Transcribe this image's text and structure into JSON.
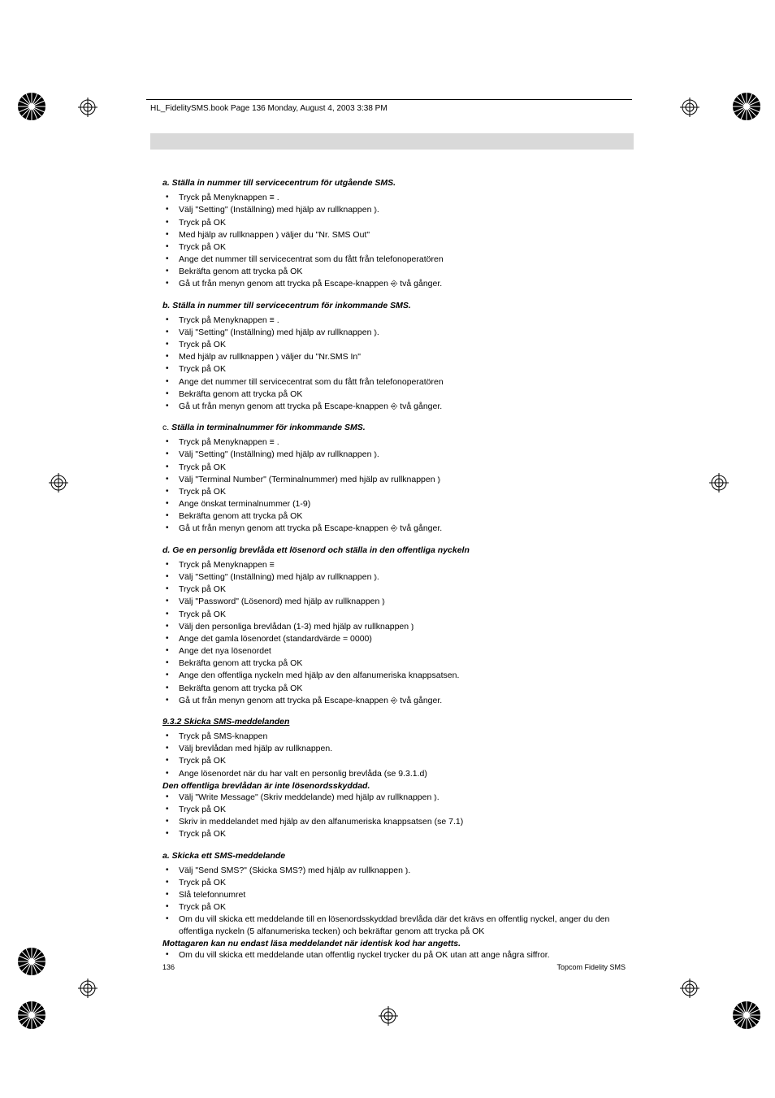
{
  "header": {
    "running_head": "HL_FidelitySMS.book  Page 136  Monday, August 4, 2003  3:38 PM"
  },
  "sections": {
    "a": {
      "title": "a. Ställa in nummer till servicecentrum för utgående SMS.",
      "steps": [
        "Tryck på Menyknappen  ≡ .",
        "Välj \"Setting\" (Inställning) med hjälp av rullknappen  ⦆.",
        "Tryck på OK",
        "Med hjälp av rullknappen  ⦆ väljer du \"Nr.    SMS Out\"",
        "Tryck på OK",
        "Ange det nummer till servicecentrat som du fått från telefonoperatören",
        "Bekräfta genom att trycka på OK",
        "Gå ut från menyn genom att trycka på Escape-knappen  ⎆  två gånger."
      ]
    },
    "b": {
      "title": "b. Ställa in nummer till servicecentrum för inkommande SMS.",
      "steps": [
        "Tryck på Menyknappen  ≡ .",
        "Välj \"Setting\" (Inställning) med hjälp av rullknappen  ⦆.",
        "Tryck på OK",
        "Med hjälp av rullknappen  ⦆ väljer du \"Nr.SMS In\"",
        "Tryck på OK",
        "Ange det nummer till servicecentrat som du fått från telefonoperatören",
        "Bekräfta genom att trycka på OK",
        "Gå ut från menyn genom att trycka på Escape-knappen  ⎆  två gånger."
      ]
    },
    "c": {
      "prefix": "c. ",
      "title": "Ställa in terminalnummer för inkommande SMS.",
      "steps": [
        "Tryck på Menyknappen  ≡ .",
        "Välj \"Setting\" (Inställning) med hjälp av rullknappen  ⦆.",
        "Tryck på OK",
        "Välj \"Terminal Number\" (Terminalnummer) med hjälp av rullknappen  ⦆",
        "Tryck på OK",
        "Ange önskat terminalnummer (1-9)",
        "Bekräfta genom att trycka på OK",
        "Gå ut från menyn genom att trycka på Escape-knappen  ⎆  två gånger."
      ]
    },
    "d": {
      "title": "d. Ge en personlig brevlåda ett lösenord och ställa in den offentliga nyckeln",
      "steps": [
        "Tryck på Menyknappen  ≡",
        "Välj \"Setting\" (Inställning) med hjälp av rullknappen  ⦆.",
        "Tryck på OK",
        "Välj \"Password\" (Lösenord) med hjälp av rullknappen  ⦆",
        "Tryck på OK",
        "Välj den personliga brevlådan (1-3) med hjälp av rullknappen  ⦆",
        "Ange det gamla lösenordet (standardvärde = 0000)",
        "Ange det nya lösenordet",
        "Bekräfta genom att trycka på OK",
        "Ange den offentliga nyckeln med hjälp av den alfanumeriska knappsatsen.",
        "Bekräfta genom att trycka på OK",
        " Gå ut från menyn genom att trycka på Escape-knappen  ⎆  två gånger."
      ]
    },
    "s932": {
      "title": "9.3.2 Skicka SMS-meddelanden",
      "steps1": [
        "Tryck på SMS-knappen",
        "Välj brevlådan med hjälp av rullknappen.",
        "Tryck på OK",
        "Ange lösenordet när du har valt en personlig brevlåda (se 9.3.1.d)"
      ],
      "note": "Den offentliga brevlådan är inte lösenordsskyddad.",
      "steps2": [
        "Välj \"Write Message\" (Skriv meddelande) med hjälp av rullknappen  ⦆.",
        "Tryck på OK",
        "Skriv in meddelandet med hjälp av den alfanumeriska knappsatsen (se 7.1)",
        "Tryck på OK"
      ]
    },
    "send": {
      "title": "a. Skicka ett SMS-meddelande",
      "steps1": [
        "Välj \"Send SMS?\" (Skicka SMS?) med hjälp av rullknappen  ⦆.",
        "Tryck på OK",
        "Slå telefonnumret",
        "Tryck på OK",
        "Om du vill skicka ett meddelande till en lösenordsskyddad brevlåda där det krävs en offentlig nyckel, anger du den offentliga nyckeln (5 alfanumeriska tecken) och bekräftar genom att trycka på OK"
      ],
      "note": "Mottagaren kan nu endast läsa meddelandet när identisk kod har angetts.",
      "steps2": [
        "Om du vill skicka ett meddelande utan offentlig nyckel trycker du på OK utan att ange några siffror."
      ]
    }
  },
  "footer": {
    "page": "136",
    "product": "Topcom Fidelity SMS"
  }
}
